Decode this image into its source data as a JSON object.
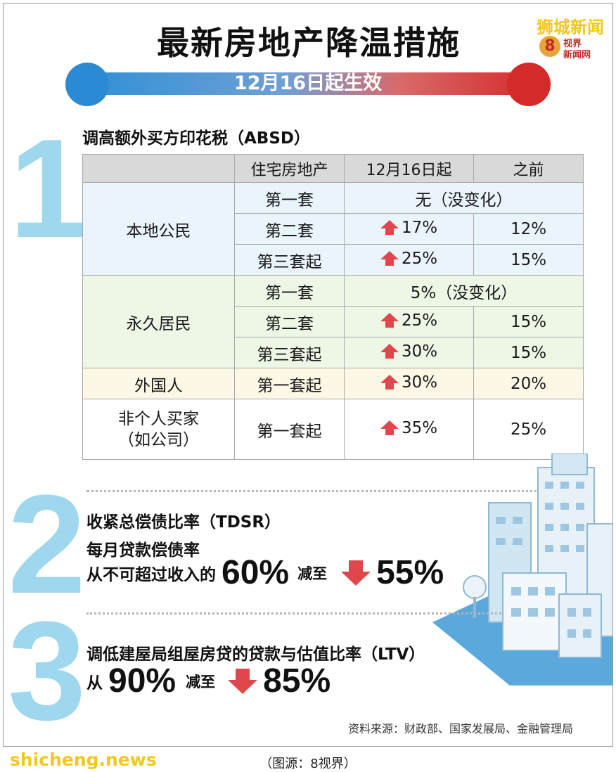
{
  "title": "最新房地产降温措施",
  "banner": "12月16日起生效",
  "logo": {
    "top_text": "狮城新闻",
    "badge_num": "8",
    "line1": "视界",
    "line2": "新闻网"
  },
  "section1": {
    "number": "1",
    "title": "调高额外买方印花税（ABSD）",
    "headers": [
      "住宅房地产",
      "12月16日起",
      "之前"
    ],
    "groups": {
      "citizen": {
        "label": "本地公民",
        "rows": [
          {
            "property": "第一套",
            "merged": "无（没变化）"
          },
          {
            "property": "第二套",
            "new": "17%",
            "before": "12%"
          },
          {
            "property": "第三套起",
            "new": "25%",
            "before": "15%"
          }
        ]
      },
      "pr": {
        "label": "永久居民",
        "rows": [
          {
            "property": "第一套",
            "merged": "5%（没变化）"
          },
          {
            "property": "第二套",
            "new": "25%",
            "before": "15%"
          },
          {
            "property": "第三套起",
            "new": "30%",
            "before": "15%"
          }
        ]
      },
      "foreigner": {
        "label": "外国人",
        "rows": [
          {
            "property": "第一套起",
            "new": "30%",
            "before": "20%"
          }
        ]
      },
      "entity": {
        "label_line1": "非个人买家",
        "label_line2": "（如公司）",
        "rows": [
          {
            "property": "第一套起",
            "new": "35%",
            "before": "25%"
          }
        ]
      }
    }
  },
  "section2": {
    "number": "2",
    "title": "收紧总偿债比率（TDSR）",
    "subtitle": "每月贷款偿债率",
    "prefix": "从不可超过收入的",
    "from": "60%",
    "connector": "减至",
    "to": "55%"
  },
  "section3": {
    "number": "3",
    "title": "调低建屋局组屋房贷的贷款与估值比率（LTV）",
    "prefix": "从",
    "from": "90%",
    "connector": "减至",
    "to": "85%"
  },
  "source": "资料来源：财政部、国家发展局、金融管理局",
  "watermark": "shicheng.news",
  "caption": "（图源：8视界）"
}
